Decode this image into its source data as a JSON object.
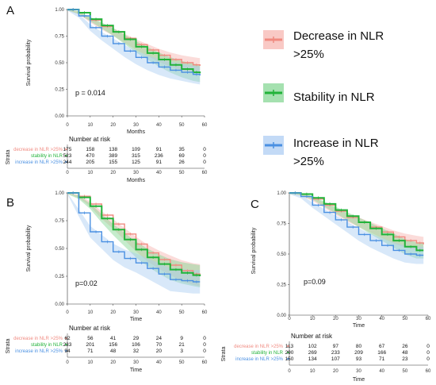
{
  "colors": {
    "decrease": "#F08A80",
    "decrease_fill": "#F7B2AC",
    "stability": "#22B33A",
    "stability_fill": "#7FD48E",
    "increase": "#4A90E2",
    "increase_fill": "#A9CBF2"
  },
  "legend": {
    "items": [
      {
        "key": "decrease",
        "label_lines": [
          "Decrease in NLR",
          ">25%"
        ]
      },
      {
        "key": "stability",
        "label_lines": [
          "Stability in NLR"
        ]
      },
      {
        "key": "increase",
        "label_lines": [
          "Increase in NLR",
          ">25%"
        ]
      }
    ]
  },
  "chart_data": [
    {
      "type": "line",
      "panel": "A",
      "ylabel": "Survival probability",
      "xlabel": "Months",
      "ylim": [
        0,
        1
      ],
      "xlim": [
        0,
        60
      ],
      "yticks": [
        "0.00",
        "0.25",
        "0.50",
        "0.75",
        "1.00"
      ],
      "xticks": [
        "0",
        "10",
        "20",
        "30",
        "40",
        "50",
        "60"
      ],
      "annotation": "p = 0.014",
      "series": [
        {
          "key": "decrease",
          "x": [
            0,
            5,
            10,
            15,
            20,
            25,
            30,
            35,
            40,
            45,
            50,
            55,
            58
          ],
          "y": [
            1.0,
            0.97,
            0.9,
            0.84,
            0.79,
            0.73,
            0.67,
            0.62,
            0.57,
            0.53,
            0.5,
            0.48,
            0.47
          ]
        },
        {
          "key": "stability",
          "x": [
            0,
            5,
            10,
            15,
            20,
            25,
            30,
            35,
            40,
            45,
            50,
            55,
            58
          ],
          "y": [
            1.0,
            0.97,
            0.91,
            0.85,
            0.79,
            0.72,
            0.65,
            0.59,
            0.53,
            0.48,
            0.44,
            0.41,
            0.4
          ]
        },
        {
          "key": "increase",
          "x": [
            0,
            5,
            10,
            15,
            20,
            25,
            30,
            35,
            40,
            45,
            50,
            55,
            58
          ],
          "y": [
            1.0,
            0.94,
            0.83,
            0.75,
            0.68,
            0.61,
            0.55,
            0.5,
            0.46,
            0.43,
            0.41,
            0.39,
            0.38
          ]
        }
      ],
      "risk_table": {
        "title": "Number at risk",
        "strata_label": "Strata",
        "xlabel": "Months",
        "rows": [
          {
            "key": "decrease",
            "label": "decrease in NLR >25%",
            "values": [
              "175",
              "158",
              "138",
              "109",
              "91",
              "35",
              "0"
            ]
          },
          {
            "key": "stability",
            "label": "stability in NLR",
            "values": [
              "523",
              "470",
              "389",
              "315",
              "236",
              "69",
              "0"
            ]
          },
          {
            "key": "increase",
            "label": "increase in NLR >25%",
            "values": [
              "244",
              "205",
              "155",
              "125",
              "91",
              "26",
              "0"
            ]
          }
        ]
      }
    },
    {
      "type": "line",
      "panel": "B",
      "ylabel": "Survival probability",
      "xlabel": "Time",
      "ylim": [
        0,
        1
      ],
      "xlim": [
        0,
        60
      ],
      "yticks": [
        "0.00",
        "0.25",
        "0.50",
        "0.75",
        "1.00"
      ],
      "xticks": [
        "0",
        "10",
        "20",
        "30",
        "40",
        "50",
        "60"
      ],
      "annotation": "p=0.02",
      "series": [
        {
          "key": "decrease",
          "x": [
            0,
            5,
            10,
            15,
            20,
            25,
            30,
            35,
            40,
            45,
            50,
            55,
            58
          ],
          "y": [
            1.0,
            0.97,
            0.9,
            0.8,
            0.72,
            0.63,
            0.54,
            0.46,
            0.4,
            0.35,
            0.3,
            0.27,
            0.26
          ]
        },
        {
          "key": "stability",
          "x": [
            0,
            5,
            10,
            15,
            20,
            25,
            30,
            35,
            40,
            45,
            50,
            55,
            58
          ],
          "y": [
            1.0,
            0.96,
            0.88,
            0.77,
            0.67,
            0.58,
            0.49,
            0.42,
            0.36,
            0.31,
            0.28,
            0.26,
            0.25
          ]
        },
        {
          "key": "increase",
          "x": [
            0,
            5,
            10,
            15,
            20,
            25,
            30,
            35,
            40,
            45,
            50,
            55,
            58
          ],
          "y": [
            1.0,
            0.82,
            0.65,
            0.56,
            0.47,
            0.41,
            0.37,
            0.32,
            0.27,
            0.22,
            0.21,
            0.2,
            0.2
          ]
        }
      ],
      "risk_table": {
        "title": "Number at risk",
        "strata_label": "Strata",
        "xlabel": "Time",
        "rows": [
          {
            "key": "decrease",
            "label": "decrease in NLR >25%",
            "values": [
              "62",
              "56",
              "41",
              "29",
              "24",
              "9",
              "0"
            ]
          },
          {
            "key": "stability",
            "label": "stability in NLR",
            "values": [
              "233",
              "201",
              "156",
              "106",
              "70",
              "21",
              "0"
            ]
          },
          {
            "key": "increase",
            "label": "increase in NLR >25%",
            "values": [
              "94",
              "71",
              "48",
              "32",
              "20",
              "3",
              "0"
            ]
          }
        ]
      }
    },
    {
      "type": "line",
      "panel": "C",
      "ylabel": "Survival probability",
      "xlabel": "Time",
      "ylim": [
        0,
        1
      ],
      "xlim": [
        0,
        60
      ],
      "yticks": [
        "0.00",
        "0.25",
        "0.50",
        "0.75",
        "1.00"
      ],
      "xticks": [
        "0",
        "10",
        "20",
        "30",
        "40",
        "50",
        "60"
      ],
      "annotation": "p=0.09",
      "series": [
        {
          "key": "decrease",
          "x": [
            0,
            5,
            10,
            15,
            20,
            25,
            30,
            35,
            40,
            45,
            50,
            55,
            58
          ],
          "y": [
            1.0,
            0.99,
            0.95,
            0.9,
            0.85,
            0.8,
            0.76,
            0.72,
            0.68,
            0.64,
            0.61,
            0.59,
            0.58
          ]
        },
        {
          "key": "stability",
          "x": [
            0,
            5,
            10,
            15,
            20,
            25,
            30,
            35,
            40,
            45,
            50,
            55,
            58
          ],
          "y": [
            1.0,
            0.99,
            0.96,
            0.91,
            0.86,
            0.81,
            0.76,
            0.71,
            0.66,
            0.61,
            0.56,
            0.53,
            0.53
          ]
        },
        {
          "key": "increase",
          "x": [
            0,
            5,
            10,
            15,
            20,
            25,
            30,
            35,
            40,
            45,
            50,
            55,
            58
          ],
          "y": [
            1.0,
            0.97,
            0.9,
            0.84,
            0.78,
            0.72,
            0.66,
            0.61,
            0.57,
            0.53,
            0.5,
            0.49,
            0.49
          ]
        }
      ],
      "risk_table": {
        "title": "Number at risk",
        "strata_label": "Strata",
        "xlabel": "Time",
        "rows": [
          {
            "key": "decrease",
            "label": "decrease in NLR >25%",
            "values": [
              "113",
              "102",
              "97",
              "80",
              "67",
              "26",
              "0"
            ]
          },
          {
            "key": "stability",
            "label": "stability in NLR",
            "values": [
              "290",
              "269",
              "233",
              "209",
              "166",
              "48",
              "0"
            ]
          },
          {
            "key": "increase",
            "label": "increase in NLR >25%",
            "values": [
              "150",
              "134",
              "107",
              "93",
              "71",
              "23",
              "0"
            ]
          }
        ]
      }
    }
  ]
}
